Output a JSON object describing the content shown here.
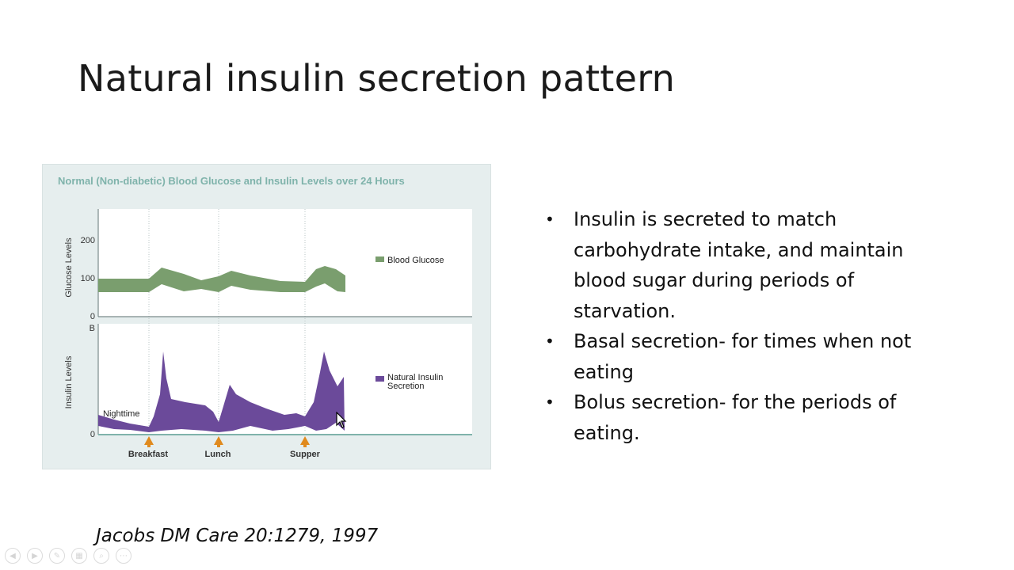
{
  "slide": {
    "title": "Natural insulin secretion pattern",
    "citation": "Jacobs DM Care 20:1279, 1997",
    "bullets": [
      "Insulin is secreted to match carbohydrate intake, and maintain blood sugar during periods of starvation.",
      "Basal secretion- for times when not eating",
      "Bolus secretion- for the periods of eating."
    ]
  },
  "figure": {
    "title": "Normal (Non-diabetic) Blood Glucose and Insulin Levels over 24 Hours",
    "glucose_axis_label": "Glucose Levels",
    "insulin_axis_label": "Insulin Levels",
    "glucose_ticks": [
      "200",
      "100",
      "0"
    ],
    "insulin_ticks": [
      "B",
      "0"
    ],
    "legend_glucose": "Blood Glucose",
    "legend_insulin_line1": "Natural Insulin",
    "legend_insulin_line2": "Secretion",
    "nighttime_label": "Nighttime",
    "meals": [
      "Breakfast",
      "Lunch",
      "Supper"
    ],
    "colors": {
      "glucose": "#7a9e6e",
      "insulin": "#6b4a9a",
      "title": "#7fb3ab",
      "arrow": "#e08a1e"
    }
  },
  "toolbar": {
    "icons": [
      "prev-icon",
      "next-icon",
      "pen-icon",
      "slides-icon",
      "zoom-icon",
      "more-icon"
    ]
  }
}
